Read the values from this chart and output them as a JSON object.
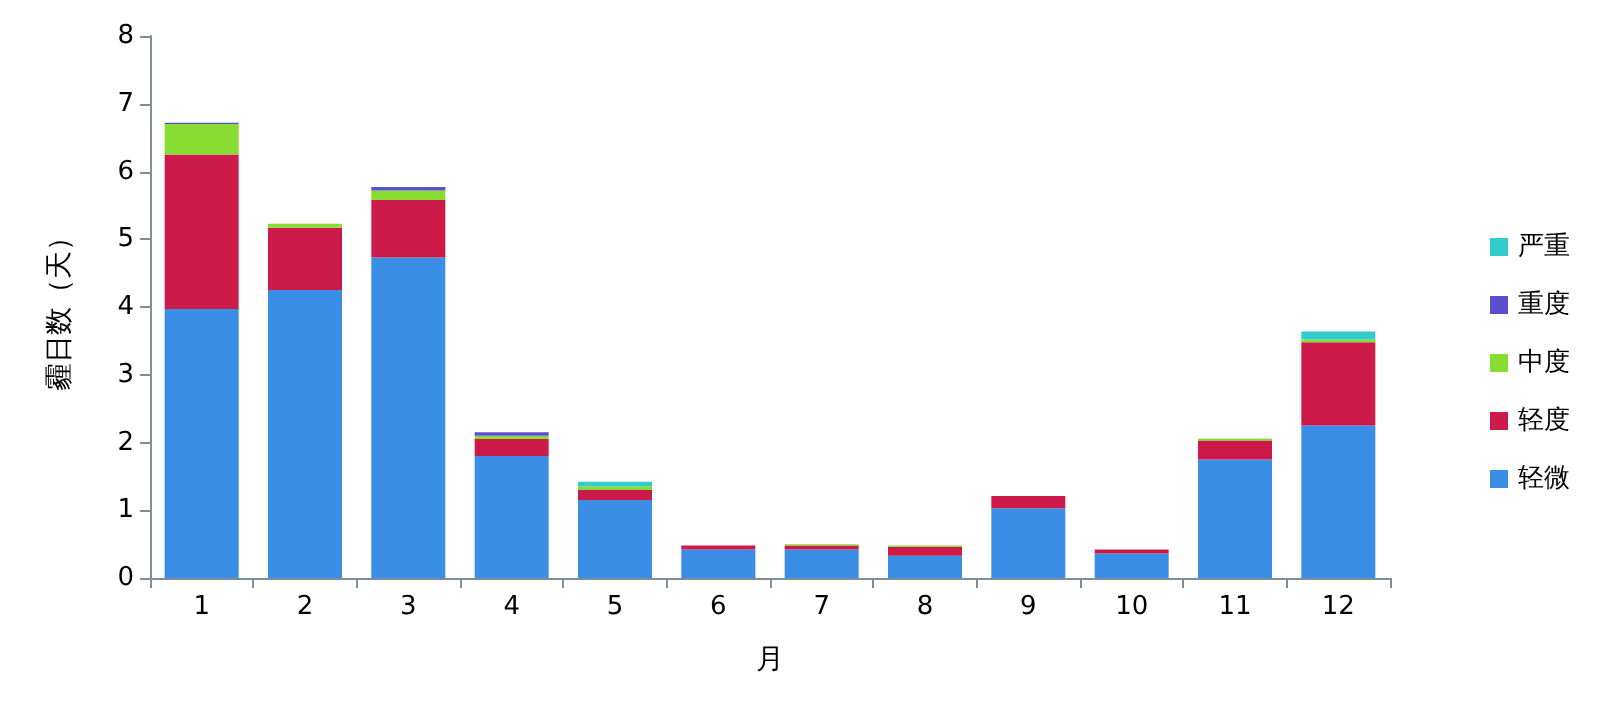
{
  "chart_data": {
    "type": "bar",
    "stacked": true,
    "xlabel": "月",
    "ylabel": "霾日数（天）",
    "categories": [
      "1",
      "2",
      "3",
      "4",
      "5",
      "6",
      "7",
      "8",
      "9",
      "10",
      "11",
      "12"
    ],
    "series": [
      {
        "name": "轻微",
        "color": "#3a8ee6",
        "values": [
          3.97,
          4.25,
          4.73,
          1.8,
          1.15,
          0.42,
          0.42,
          0.33,
          1.03,
          0.36,
          1.75,
          2.25
        ]
      },
      {
        "name": "轻度",
        "color": "#cc1a4a",
        "values": [
          2.28,
          0.92,
          0.85,
          0.25,
          0.15,
          0.06,
          0.06,
          0.13,
          0.18,
          0.06,
          0.28,
          1.23
        ]
      },
      {
        "name": "中度",
        "color": "#88dd33",
        "values": [
          0.45,
          0.06,
          0.14,
          0.05,
          0.05,
          0,
          0.02,
          0.02,
          0,
          0,
          0.03,
          0.04
        ]
      },
      {
        "name": "重度",
        "color": "#5a4fcf",
        "values": [
          0.02,
          0,
          0.05,
          0.05,
          0,
          0,
          0,
          0,
          0,
          0,
          0,
          0
        ]
      },
      {
        "name": "严重",
        "color": "#33cccc",
        "values": [
          0,
          0,
          0,
          0,
          0.07,
          0,
          0,
          0,
          0,
          0,
          0,
          0.12
        ]
      }
    ],
    "ylim": [
      0,
      8
    ],
    "yticks": [
      0,
      1,
      2,
      3,
      4,
      5,
      6,
      7,
      8
    ],
    "grid": false,
    "legend": "right"
  }
}
